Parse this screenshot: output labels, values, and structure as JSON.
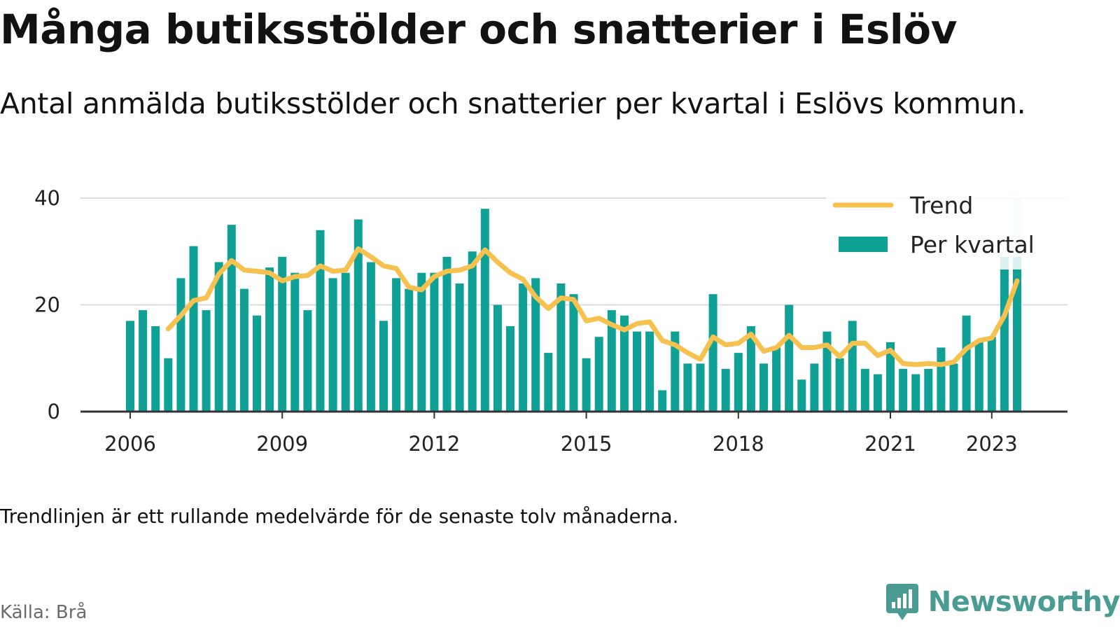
{
  "title": "Många butiksstölder och snatterier i Eslöv",
  "subtitle": "Antal anmälda butiksstölder och snatterier per kvartal i Eslövs kommun.",
  "note": "Trendlinjen är ett rullande medelvärde för de senaste tolv månaderna.",
  "source": "Källa: Brå",
  "brand": {
    "name": "Newsworthy",
    "icon": "newsworthy-logo-icon",
    "color": "#4a9c92"
  },
  "colors": {
    "bar": "#0fa195",
    "bar_highlight": "#cde9e7",
    "trend": "#f7c14f",
    "grid": "#dddddd",
    "axis": "#333333"
  },
  "chart_data": {
    "type": "bar",
    "ylim": [
      0,
      40
    ],
    "yticks": [
      0,
      20,
      40
    ],
    "xticks": [
      {
        "label": "2006",
        "year": 2006
      },
      {
        "label": "2009",
        "year": 2009
      },
      {
        "label": "2012",
        "year": 2012
      },
      {
        "label": "2015",
        "year": 2015
      },
      {
        "label": "2018",
        "year": 2018
      },
      {
        "label": "2021",
        "year": 2021
      },
      {
        "label": "2023",
        "year": 2023
      }
    ],
    "grid": true,
    "legend_position": "top-right",
    "start": "2006 Q1",
    "series": [
      {
        "name": "Per kvartal",
        "kind": "bar",
        "values": [
          17,
          19,
          16,
          10,
          25,
          31,
          19,
          28,
          35,
          23,
          18,
          27,
          29,
          26,
          19,
          34,
          25,
          26,
          36,
          28,
          17,
          25,
          23,
          26,
          26,
          29,
          24,
          30,
          38,
          20,
          16,
          24,
          25,
          11,
          24,
          22,
          10,
          14,
          19,
          18,
          15,
          15,
          4,
          15,
          9,
          9,
          22,
          8,
          11,
          16,
          9,
          12,
          20,
          6,
          9,
          15,
          10,
          17,
          8,
          7,
          13,
          8,
          7,
          8,
          12,
          9,
          18,
          13,
          14,
          29,
          40
        ],
        "highlight_last": true
      },
      {
        "name": "Trend",
        "kind": "line",
        "start_offset": 3,
        "values": [
          15.5,
          18,
          20.8,
          21.3,
          25.8,
          28.3,
          26.5,
          26.3,
          26,
          24.5,
          25.3,
          25.5,
          27.3,
          26.3,
          26.5,
          30.5,
          29,
          27.3,
          26.8,
          23.3,
          22.8,
          25.3,
          26.3,
          26.5,
          27.3,
          30.3,
          28,
          26,
          24.8,
          21.5,
          19.3,
          21.3,
          21,
          17,
          17.5,
          16.3,
          15.3,
          16.5,
          16.8,
          13.3,
          12.5,
          11,
          9.8,
          14,
          12.5,
          12.8,
          14.5,
          11.3,
          12,
          14.3,
          12,
          12,
          12.5,
          10.3,
          12.8,
          12.8,
          10.5,
          11.5,
          9,
          8.8,
          9,
          8.8,
          9.3,
          11.8,
          13.3,
          13.8,
          18,
          24.5
        ]
      }
    ]
  }
}
